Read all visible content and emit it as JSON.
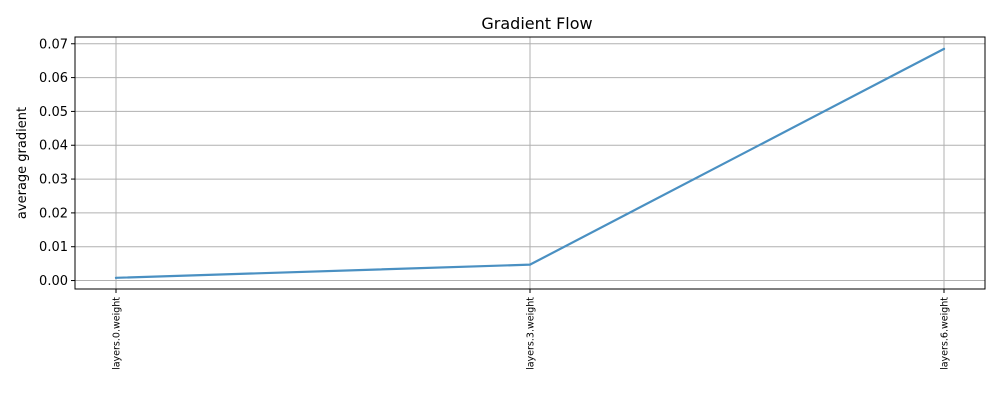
{
  "chart_data": {
    "type": "line",
    "title": "Gradient Flow",
    "xlabel": "",
    "ylabel": "average gradient",
    "categories": [
      "layers.0.weight",
      "layers.3.weight",
      "layers.6.weight"
    ],
    "series": [
      {
        "values": [
          0.0008,
          0.0047,
          0.0685
        ],
        "color": "#4a90c2"
      }
    ],
    "ylim": [
      -0.0025,
      0.072
    ],
    "yticks": [
      0.0,
      0.01,
      0.02,
      0.03,
      0.04,
      0.05,
      0.06,
      0.07
    ],
    "ytick_labels": [
      "0.00",
      "0.01",
      "0.02",
      "0.03",
      "0.04",
      "0.05",
      "0.06",
      "0.07"
    ],
    "grid": true,
    "xtick_rotation": "vertical"
  }
}
